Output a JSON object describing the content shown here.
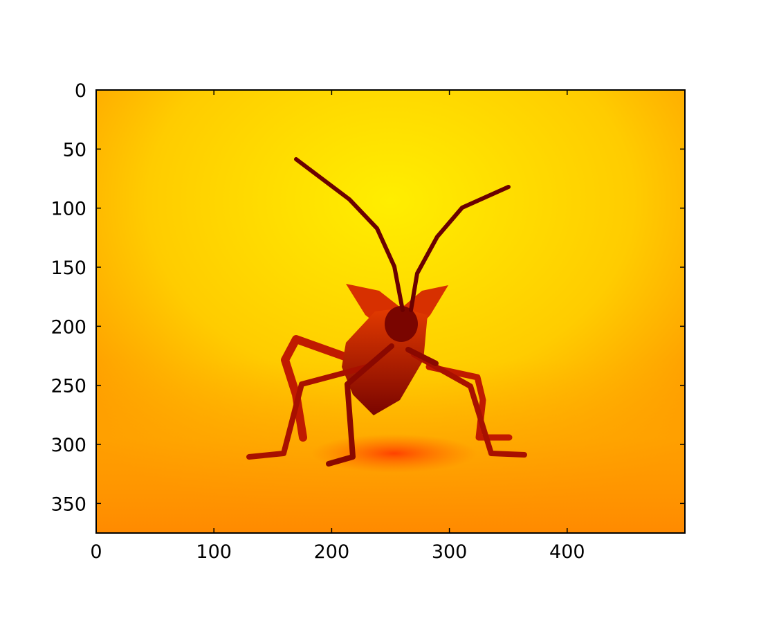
{
  "chart_data": {
    "type": "image",
    "colormap": "hot",
    "image_width": 500,
    "image_height": 375,
    "subject": "leaf-footed bug standing on a textured surface, viewed from the front",
    "x_ticks": [
      {
        "value": 0,
        "label": "0"
      },
      {
        "value": 100,
        "label": "100"
      },
      {
        "value": 200,
        "label": "200"
      },
      {
        "value": 300,
        "label": "300"
      },
      {
        "value": 400,
        "label": "400"
      }
    ],
    "y_ticks": [
      {
        "value": 0,
        "label": "0"
      },
      {
        "value": 50,
        "label": "50"
      },
      {
        "value": 100,
        "label": "100"
      },
      {
        "value": 150,
        "label": "150"
      },
      {
        "value": 200,
        "label": "200"
      },
      {
        "value": 250,
        "label": "250"
      },
      {
        "value": 300,
        "label": "300"
      },
      {
        "value": 350,
        "label": "350"
      }
    ],
    "xlim": [
      0,
      500
    ],
    "ylim": [
      375,
      0
    ],
    "y_inverted": true,
    "grid": false,
    "colors": {
      "background_bright": "#ffee00",
      "background_mid": "#ffb000",
      "edge": "#ff7000",
      "ground": "#ff9a00",
      "subject_dark": "#6a0000",
      "subject_mid": "#b81400",
      "subject_light": "#e63a00"
    }
  }
}
